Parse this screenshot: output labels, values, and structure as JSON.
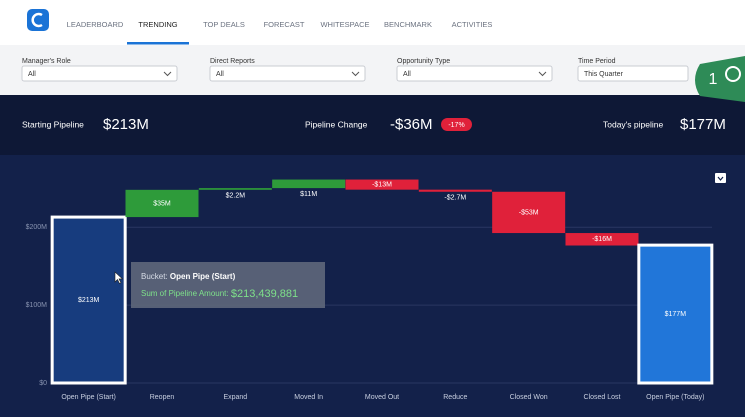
{
  "nav": {
    "tabs": [
      "LEADERBOARD",
      "TRENDING",
      "TOP DEALS",
      "FORECAST",
      "WHITESPACE",
      "BENCHMARK",
      "ACTIVITIES"
    ]
  },
  "filters": [
    {
      "label": "Manager's Role",
      "value": "All"
    },
    {
      "label": "Direct Reports",
      "value": "All"
    },
    {
      "label": "Opportunity Type",
      "value": "All"
    },
    {
      "label": "Time Period",
      "value": "This Quarter"
    }
  ],
  "badge": "1",
  "summary": {
    "starting_label": "Starting Pipeline",
    "starting_value": "$213M",
    "change_label": "Pipeline Change",
    "change_value": "-$36M",
    "change_pct": "-17%",
    "today_label": "Today's pipeline",
    "today_value": "$177M"
  },
  "chart_data": {
    "type": "waterfall",
    "categories": [
      "Open Pipe (Start)",
      "Reopen",
      "Expand",
      "Moved In",
      "Moved Out",
      "Reduce",
      "Closed Won",
      "Closed Lost",
      "Open Pipe (Today)"
    ],
    "values": [
      213,
      35,
      2.2,
      11,
      -13,
      -2.7,
      -53,
      -16,
      177
    ],
    "value_labels": [
      "$213M",
      "$35M",
      "$2.2M",
      "$11M",
      "-$13M",
      "-$2.7M",
      "-$53M",
      "-$16M",
      "$177M"
    ],
    "colors": [
      "#173c7e",
      "#2e9b3a",
      "#2e9b3a",
      "#2e9b3a",
      "#e0213a",
      "#e0213a",
      "#e0213a",
      "#e0213a",
      "#2176d9"
    ],
    "ylim": [
      0,
      285
    ],
    "yticks": [
      {
        "value": 0,
        "label": "$0"
      },
      {
        "value": 100,
        "label": "$100M"
      },
      {
        "value": 200,
        "label": "$200M"
      }
    ],
    "grid": true
  },
  "tooltip": {
    "bucket_label": "Bucket:",
    "bucket": "Open Pipe (Start)",
    "amount_label": "Sum of Pipeline Amount:",
    "amount": "$213,439,881"
  }
}
